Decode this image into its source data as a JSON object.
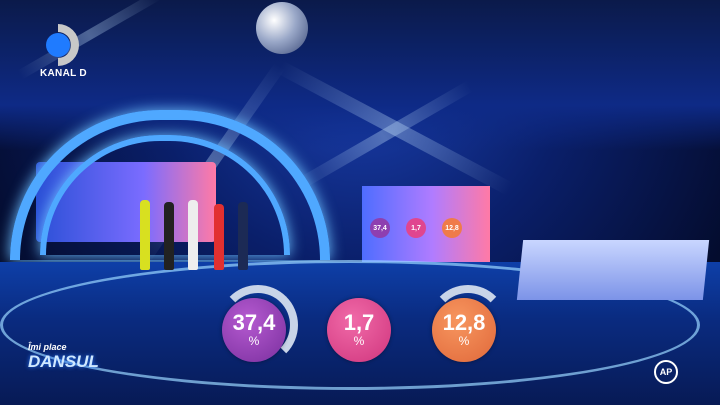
{
  "broadcaster": {
    "logo_text": "KANAL D"
  },
  "show": {
    "title_line1": "Îmi place",
    "title_line2": "DANSUL"
  },
  "results": [
    {
      "value": "37,4",
      "unit": "%",
      "color": "#8e3fb0"
    },
    {
      "value": "1,7",
      "unit": "%",
      "color": "#e0468f"
    },
    {
      "value": "12,8",
      "unit": "%",
      "color": "#ef7b4a"
    }
  ],
  "studio_screen": {
    "values": [
      "37,4",
      "1,7",
      "12,8"
    ]
  },
  "badge": {
    "text": "AP"
  }
}
